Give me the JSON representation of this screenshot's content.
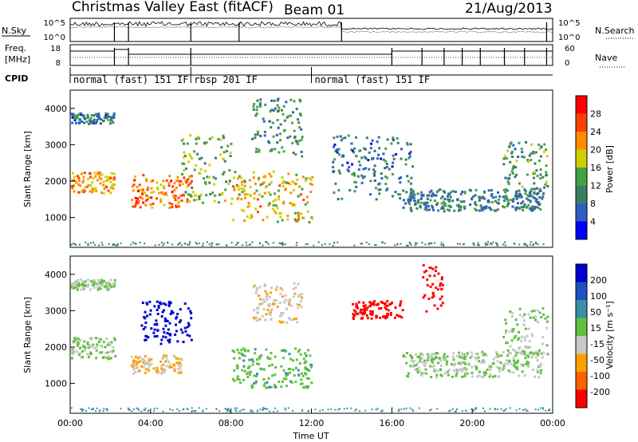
{
  "header": {
    "title": "Christmas Valley East (fitACF)",
    "beam": "Beam 01",
    "date": "21/Aug/2013"
  },
  "strip_labels": {
    "nsky": "N.Sky",
    "nsearch": "N.Search",
    "freq": "Freq.",
    "freq_unit": "[MHz]",
    "nave": "Nave",
    "cpid": "CPID"
  },
  "strip_ticks": {
    "noise_left": [
      "10^5",
      "10^0"
    ],
    "noise_right": [
      "10^5",
      "10^0"
    ],
    "freq_left": [
      "18",
      "8"
    ],
    "nave_right": [
      "60",
      "0"
    ]
  },
  "cpid_modes": [
    {
      "label": "normal (fast) 151 IF",
      "start": 0.0,
      "end": 6.0
    },
    {
      "label": "rbsp 201 IF",
      "start": 6.0,
      "end": 12.0
    },
    {
      "label": "normal (fast) 151 IF",
      "start": 12.0,
      "end": 24.0
    }
  ],
  "colors": {
    "power": [
      "#0000ff",
      "#2f5fc0",
      "#3a7f62",
      "#46a046",
      "#cfcf00",
      "#ff8c00",
      "#ff4000",
      "#ff0000"
    ],
    "velocity": [
      "#0000d0",
      "#1f4fc0",
      "#3b8fa8",
      "#60c040",
      "#c8c8c8",
      "#ffa000",
      "#ff6000",
      "#ff0000"
    ]
  },
  "chart_data": [
    {
      "type": "heatmap",
      "panel": "power",
      "ylabel": "Slant Range [km]",
      "ylim": [
        180,
        4500
      ],
      "xlim": [
        0,
        24
      ],
      "yticks": [
        1000,
        2000,
        3000,
        4000
      ],
      "colorbar_label": "Power [dB]",
      "colorbar_ticks": [
        "28",
        "24",
        "20",
        "16",
        "12",
        "8",
        "4"
      ],
      "colorbar_range": [
        0,
        30
      ],
      "regions": [
        {
          "t0": 0.0,
          "t1": 2.2,
          "r0": 1700,
          "r1": 2300,
          "level": 20
        },
        {
          "t0": 0.0,
          "t1": 2.2,
          "r0": 3600,
          "r1": 3900,
          "level": 8
        },
        {
          "t0": 3.0,
          "t1": 6.0,
          "r0": 1300,
          "r1": 2200,
          "level": 22
        },
        {
          "t0": 5.5,
          "t1": 8.0,
          "r0": 1400,
          "r1": 3300,
          "level": 14
        },
        {
          "t0": 8.0,
          "t1": 12.0,
          "r0": 900,
          "r1": 2300,
          "level": 18
        },
        {
          "t0": 9.0,
          "t1": 11.5,
          "r0": 2700,
          "r1": 4300,
          "level": 10
        },
        {
          "t0": 13.0,
          "t1": 17.0,
          "r0": 1500,
          "r1": 3300,
          "level": 8
        },
        {
          "t0": 16.5,
          "t1": 23.5,
          "r0": 1200,
          "r1": 1800,
          "level": 9
        },
        {
          "t0": 21.5,
          "t1": 23.7,
          "r0": 1800,
          "r1": 3100,
          "level": 12
        }
      ]
    },
    {
      "type": "heatmap",
      "panel": "velocity",
      "ylabel": "Slant Range [km]",
      "xlabel": "Time UT",
      "ylim": [
        180,
        4500
      ],
      "xlim": [
        0,
        24
      ],
      "yticks": [
        1000,
        2000,
        3000,
        4000
      ],
      "xticks": [
        "00:00",
        "04:00",
        "08:00",
        "12:00",
        "16:00",
        "20:00",
        "00:00"
      ],
      "colorbar_label": "Velocity [m s⁻¹]",
      "colorbar_ticks": [
        "200",
        "100",
        "50",
        "15",
        "-15",
        "-50",
        "-100",
        "-200"
      ],
      "colorbar_range": [
        -250,
        250
      ],
      "regions": [
        {
          "t0": 0.0,
          "t1": 2.2,
          "r0": 1700,
          "r1": 2300,
          "level": 0
        },
        {
          "t0": 0.0,
          "t1": 2.2,
          "r0": 3600,
          "r1": 3900,
          "level": 0
        },
        {
          "t0": 3.0,
          "t1": 5.5,
          "r0": 1300,
          "r1": 1800,
          "level": -60
        },
        {
          "t0": 3.5,
          "t1": 6.0,
          "r0": 2100,
          "r1": 3300,
          "level": 220
        },
        {
          "t0": 8.0,
          "t1": 12.0,
          "r0": 900,
          "r1": 2000,
          "level": 40
        },
        {
          "t0": 9.0,
          "t1": 11.5,
          "r0": 2700,
          "r1": 3800,
          "level": -50
        },
        {
          "t0": 14.0,
          "t1": 16.5,
          "r0": 2800,
          "r1": 3300,
          "level": -220
        },
        {
          "t0": 16.5,
          "t1": 23.5,
          "r0": 1200,
          "r1": 1900,
          "level": 0
        },
        {
          "t0": 21.5,
          "t1": 23.7,
          "r0": 1800,
          "r1": 3100,
          "level": 0
        },
        {
          "t0": 17.5,
          "t1": 18.5,
          "r0": 3000,
          "r1": 4300,
          "level": -220
        }
      ]
    }
  ]
}
